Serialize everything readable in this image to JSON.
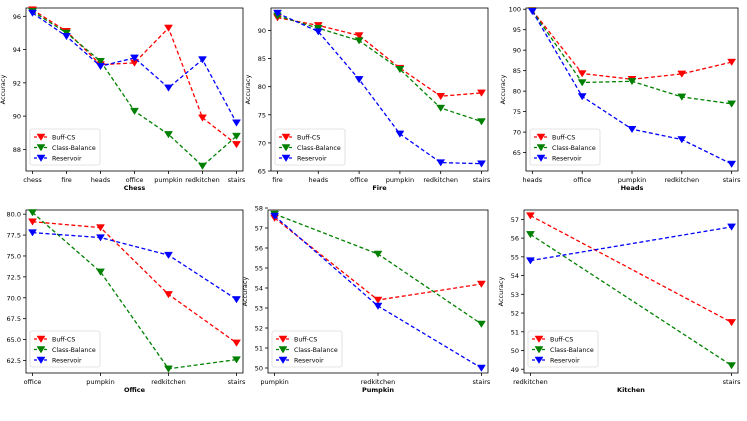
{
  "series_styles": {
    "Buff-CS": {
      "color": "#ff0000"
    },
    "Class-Balance": {
      "color": "#008000"
    },
    "Reservoir": {
      "color": "#0000ff"
    }
  },
  "ylabel": "Accuracy",
  "chart_data": [
    {
      "type": "line",
      "title": "Chess",
      "ylabel": "Accuracy",
      "categories": [
        "chess",
        "fire",
        "heads",
        "office",
        "pumpkin",
        "redkitchen",
        "stairs"
      ],
      "ylim": [
        86.7,
        96.5
      ],
      "yticks": [
        88,
        90,
        92,
        94,
        96
      ],
      "ytick_labels": [
        "88",
        "90",
        "92",
        "94",
        "96"
      ],
      "legend": [
        "Buff-CS",
        "Class-Balance",
        "Reservoir"
      ],
      "series": [
        {
          "name": "Buff-CS",
          "values": [
            96.4,
            95.1,
            93.1,
            93.2,
            95.3,
            89.9,
            88.3
          ]
        },
        {
          "name": "Class-Balance",
          "values": [
            96.3,
            95.0,
            93.3,
            90.3,
            88.9,
            87.0,
            88.8
          ]
        },
        {
          "name": "Reservoir",
          "values": [
            96.2,
            94.8,
            93.0,
            93.5,
            91.7,
            93.4,
            89.6
          ]
        }
      ]
    },
    {
      "type": "line",
      "title": "Fire",
      "ylabel": "Accuracy",
      "categories": [
        "fire",
        "heads",
        "office",
        "pumpkin",
        "redkitchen",
        "stairs"
      ],
      "ylim": [
        65,
        94
      ],
      "yticks": [
        65,
        70,
        75,
        80,
        85,
        90
      ],
      "ytick_labels": [
        "65",
        "70",
        "75",
        "80",
        "85",
        "90"
      ],
      "legend": [
        "Buff-CS",
        "Class-Balance",
        "Reservoir"
      ],
      "series": [
        {
          "name": "Buff-CS",
          "values": [
            92.3,
            90.9,
            89.1,
            83.3,
            78.3,
            78.9
          ]
        },
        {
          "name": "Class-Balance",
          "values": [
            92.6,
            90.4,
            88.2,
            83.1,
            76.2,
            73.8
          ]
        },
        {
          "name": "Reservoir",
          "values": [
            93.1,
            89.8,
            81.3,
            71.6,
            66.5,
            66.3
          ]
        }
      ]
    },
    {
      "type": "line",
      "title": "Heads",
      "ylabel": "Accuracy",
      "categories": [
        "heads",
        "office",
        "pumpkin",
        "redkitchen",
        "stairs"
      ],
      "ylim": [
        60.5,
        100.3
      ],
      "yticks": [
        65,
        70,
        75,
        80,
        85,
        90,
        95,
        100
      ],
      "ytick_labels": [
        "65",
        "70",
        "75",
        "80",
        "85",
        "90",
        "95",
        "100"
      ],
      "legend": [
        "Buff-CS",
        "Class-Balance",
        "Reservoir"
      ],
      "series": [
        {
          "name": "Buff-CS",
          "values": [
            99.7,
            84.3,
            82.9,
            84.2,
            87.1
          ]
        },
        {
          "name": "Class-Balance",
          "values": [
            99.6,
            82.1,
            82.4,
            78.6,
            76.9
          ]
        },
        {
          "name": "Reservoir",
          "values": [
            99.5,
            78.7,
            70.7,
            68.2,
            62.2
          ]
        }
      ]
    },
    {
      "type": "line",
      "title": "Office",
      "ylabel": "",
      "categories": [
        "office",
        "pumpkin",
        "redkitchen",
        "stairs"
      ],
      "ylim": [
        61.0,
        80.5
      ],
      "yticks": [
        62.5,
        65.0,
        67.5,
        70.0,
        72.5,
        75.0,
        77.5,
        80.0
      ],
      "ytick_labels": [
        "62.5",
        "65.0",
        "67.5",
        "70.0",
        "72.5",
        "75.0",
        "77.5",
        "80.0"
      ],
      "legend": [
        "Buff-CS",
        "Class-Balance",
        "Reservoir"
      ],
      "series": [
        {
          "name": "Buff-CS",
          "values": [
            79.1,
            78.4,
            70.4,
            64.6
          ]
        },
        {
          "name": "Class-Balance",
          "values": [
            80.2,
            73.1,
            61.5,
            62.6
          ]
        },
        {
          "name": "Reservoir",
          "values": [
            77.8,
            77.2,
            75.1,
            69.8
          ]
        }
      ]
    },
    {
      "type": "line",
      "title": "Pumpkin",
      "ylabel": "Accuracy",
      "categories": [
        "pumpkin",
        "redkitchen",
        "stairs"
      ],
      "ylim": [
        49.75,
        57.9
      ],
      "yticks": [
        50,
        51,
        52,
        53,
        54,
        55,
        56,
        57,
        58
      ],
      "ytick_labels": [
        "50",
        "51",
        "52",
        "53",
        "54",
        "55",
        "56",
        "57",
        "58"
      ],
      "legend": [
        "Buff-CS",
        "Class-Balance",
        "Reservoir"
      ],
      "series": [
        {
          "name": "Buff-CS",
          "values": [
            57.5,
            53.4,
            54.2
          ]
        },
        {
          "name": "Class-Balance",
          "values": [
            57.7,
            55.7,
            52.2
          ]
        },
        {
          "name": "Reservoir",
          "values": [
            57.6,
            53.1,
            50.0
          ]
        }
      ]
    },
    {
      "type": "line",
      "title": "Kitchen",
      "ylabel": "Accuracy",
      "categories": [
        "redkitchen",
        "stairs"
      ],
      "ylim": [
        48.8,
        57.5
      ],
      "yticks": [
        49,
        50,
        51,
        52,
        53,
        54,
        55,
        56,
        57
      ],
      "ytick_labels": [
        "49",
        "50",
        "51",
        "52",
        "53",
        "54",
        "55",
        "56",
        "57"
      ],
      "legend": [
        "Buff-CS",
        "Class-Balance",
        "Reservoir"
      ],
      "series": [
        {
          "name": "Buff-CS",
          "values": [
            57.2,
            51.5
          ]
        },
        {
          "name": "Class-Balance",
          "values": [
            56.2,
            49.2
          ]
        },
        {
          "name": "Reservoir",
          "values": [
            54.8,
            56.6
          ]
        }
      ]
    }
  ]
}
